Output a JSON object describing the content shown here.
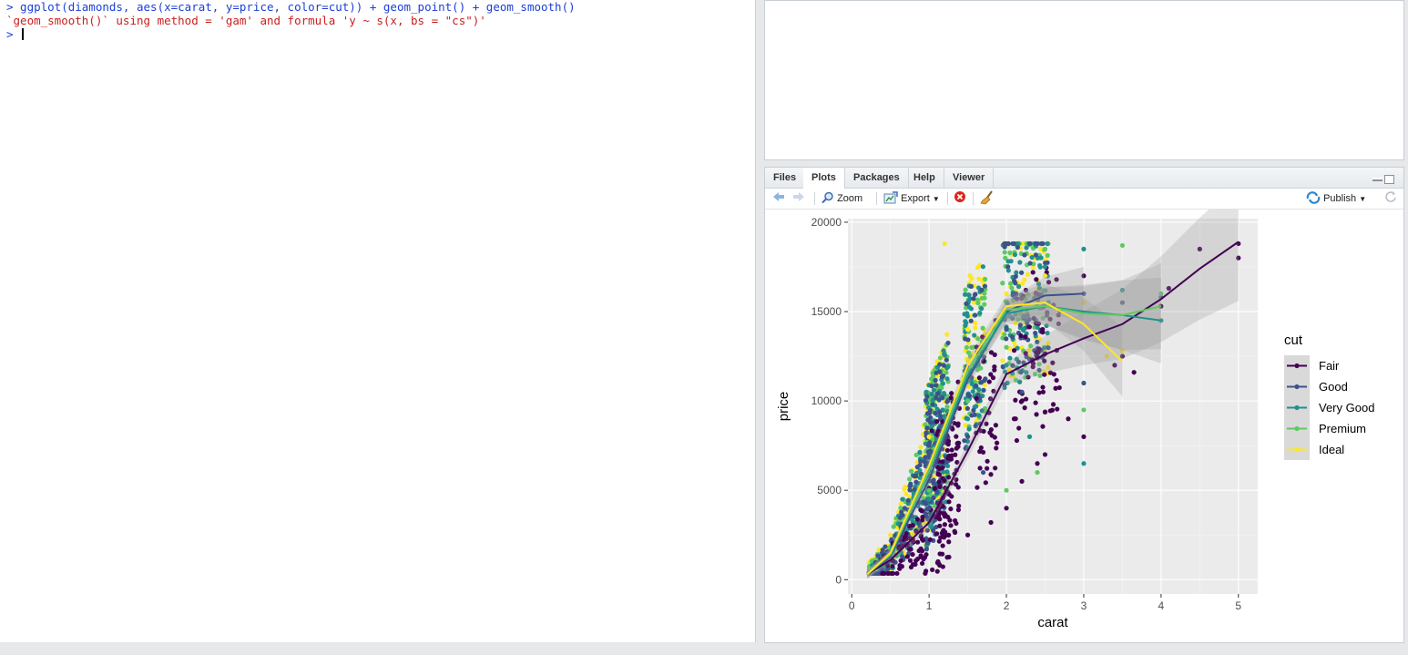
{
  "console": {
    "lines": [
      {
        "type": "cmd",
        "text": "> ggplot(diamonds, aes(x=carat, y=price, color=cut)) + geom_point() + geom_smooth()"
      },
      {
        "type": "msg",
        "text": "`geom_smooth()` using method = 'gam' and formula 'y ~ s(x, bs = \"cs\")'"
      }
    ],
    "prompt": ">"
  },
  "tabs": [
    {
      "label": "Files"
    },
    {
      "label": "Plots"
    },
    {
      "label": "Packages"
    },
    {
      "label": "Help"
    },
    {
      "label": "Viewer"
    }
  ],
  "toolbar": {
    "zoom_label": "Zoom",
    "export_label": "Export",
    "publish_label": "Publish"
  },
  "colors": {
    "Fair": "#440154",
    "Good": "#3b528b",
    "Very Good": "#21908c",
    "Premium": "#5ec962",
    "Ideal": "#fde725"
  },
  "chart_data": {
    "type": "scatter",
    "xlabel": "carat",
    "ylabel": "price",
    "xlim": [
      -0.05,
      5.25
    ],
    "ylim": [
      -800,
      20200
    ],
    "xticks": [
      0,
      1,
      2,
      3,
      4,
      5
    ],
    "yticks": [
      0,
      5000,
      10000,
      15000,
      20000
    ],
    "legend_title": "cut",
    "legend_position": "right",
    "series": [
      {
        "name": "Fair",
        "smooth_x": [
          0.2,
          0.5,
          1.0,
          1.5,
          2.0,
          2.5,
          3.0,
          3.5,
          4.0,
          4.5,
          5.0
        ],
        "smooth_y": [
          300,
          1100,
          3200,
          7200,
          11500,
          12600,
          13500,
          14300,
          15700,
          17400,
          18900
        ]
      },
      {
        "name": "Good",
        "smooth_x": [
          0.2,
          0.5,
          1.0,
          1.5,
          2.0,
          2.5,
          3.0
        ],
        "smooth_y": [
          300,
          1300,
          5600,
          11200,
          15000,
          15900,
          16000
        ]
      },
      {
        "name": "Very Good",
        "smooth_x": [
          0.2,
          0.5,
          1.0,
          1.5,
          2.0,
          2.5,
          3.0,
          3.5,
          4.0
        ],
        "smooth_y": [
          300,
          1400,
          6000,
          11400,
          14900,
          15300,
          15000,
          14800,
          14500
        ]
      },
      {
        "name": "Premium",
        "smooth_x": [
          0.2,
          0.5,
          1.0,
          1.5,
          2.0,
          2.5,
          3.0,
          3.5,
          4.0
        ],
        "smooth_y": [
          300,
          1400,
          6100,
          11700,
          15100,
          15300,
          14900,
          14800,
          15300
        ]
      },
      {
        "name": "Ideal",
        "smooth_x": [
          0.2,
          0.5,
          1.0,
          1.5,
          2.0,
          2.5,
          3.0,
          3.5
        ],
        "smooth_y": [
          300,
          1500,
          6400,
          12000,
          15300,
          15500,
          14300,
          12200
        ]
      }
    ],
    "points": [
      {
        "cut": "Fair",
        "x": [
          1.5,
          2.0,
          2.2,
          2.4,
          2.5,
          2.8,
          3.0,
          3.0,
          3.5,
          3.65,
          4.0,
          4.5,
          5.0,
          5.0,
          2.1,
          1.8,
          3.4,
          4.1
        ],
        "y": [
          2500,
          4000,
          5500,
          6500,
          7000,
          9000,
          8000,
          17000,
          12500,
          11600,
          15300,
          18500,
          18800,
          18000,
          9000,
          3200,
          12000,
          16300
        ]
      },
      {
        "cut": "Good",
        "x": [
          1.0,
          1.5,
          2.0,
          2.5,
          3.0,
          3.0,
          4.0,
          3.5,
          2.2,
          1.7
        ],
        "y": [
          4000,
          8000,
          14000,
          17000,
          11000,
          16000,
          15800,
          15500,
          10500,
          6000
        ]
      },
      {
        "cut": "Very Good",
        "x": [
          1.0,
          1.5,
          2.0,
          2.5,
          3.0,
          3.0,
          3.5,
          4.0,
          2.3
        ],
        "y": [
          4500,
          9000,
          12000,
          17500,
          6500,
          18500,
          16200,
          14500,
          8000
        ]
      },
      {
        "cut": "Premium",
        "x": [
          1.0,
          1.5,
          2.0,
          2.5,
          3.0,
          3.5,
          4.0,
          2.0,
          2.4
        ],
        "y": [
          5000,
          10000,
          13000,
          18500,
          9500,
          18700,
          16000,
          5000,
          6000
        ]
      },
      {
        "cut": "Ideal",
        "x": [
          0.5,
          1.0,
          1.5,
          2.0,
          2.5,
          3.0,
          3.3,
          3.5,
          1.2
        ],
        "y": [
          2500,
          8000,
          14000,
          16000,
          17000,
          15500,
          12500,
          12800,
          18800
        ]
      }
    ]
  }
}
